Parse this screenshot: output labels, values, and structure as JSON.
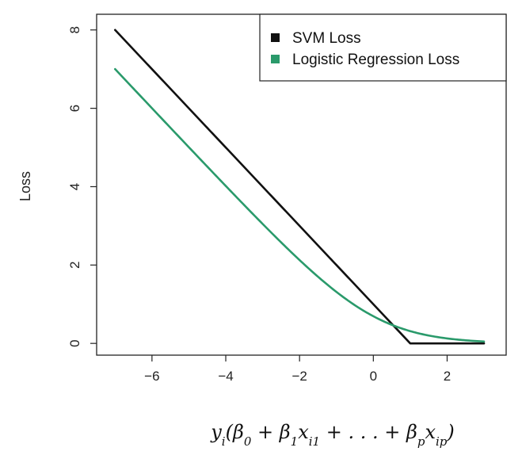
{
  "chart_data": {
    "type": "line",
    "xlim": [
      -7.5,
      3.6
    ],
    "ylim": [
      -0.3,
      8.4
    ],
    "x_ticks": [
      -6,
      -4,
      -2,
      0,
      2
    ],
    "y_ticks": [
      0,
      2,
      4,
      6,
      8
    ],
    "x_tick_labels": [
      "−6",
      "−4",
      "−2",
      "0",
      "2"
    ],
    "y_tick_labels": [
      "0",
      "2",
      "4",
      "6",
      "8"
    ],
    "ylabel": "Loss",
    "xlabel": {
      "parts": [
        {
          "t": "y",
          "sub": false
        },
        {
          "t": "i",
          "sub": true
        },
        {
          "t": "(β",
          "sub": false
        },
        {
          "t": "0",
          "sub": true
        },
        {
          "t": " + β",
          "sub": false
        },
        {
          "t": "1",
          "sub": true
        },
        {
          "t": "x",
          "sub": false
        },
        {
          "t": "i1",
          "sub": true
        },
        {
          "t": " + . . . + β",
          "sub": false
        },
        {
          "t": "p",
          "sub": true
        },
        {
          "t": "x",
          "sub": false
        },
        {
          "t": "ip",
          "sub": true
        },
        {
          "t": ")",
          "sub": false
        }
      ]
    },
    "grid": false,
    "legend_position": "top-right",
    "x_range": [
      -7,
      3
    ],
    "series": [
      {
        "name": "SVM Loss",
        "color": "#111111",
        "function": "hinge",
        "points": [
          [
            -7,
            8
          ],
          [
            1,
            0
          ],
          [
            3,
            0
          ]
        ]
      },
      {
        "name": "Logistic Regression Loss",
        "color": "#2a9a6b",
        "function": "logistic",
        "points": [
          [
            -7,
            7.0009
          ],
          [
            -6,
            6.0025
          ],
          [
            -4,
            4.0181
          ],
          [
            -2,
            2.1269
          ],
          [
            0,
            0.6931
          ],
          [
            0.5,
            0.4741
          ],
          [
            2,
            0.1269
          ],
          [
            3,
            0.0486
          ]
        ]
      }
    ]
  }
}
